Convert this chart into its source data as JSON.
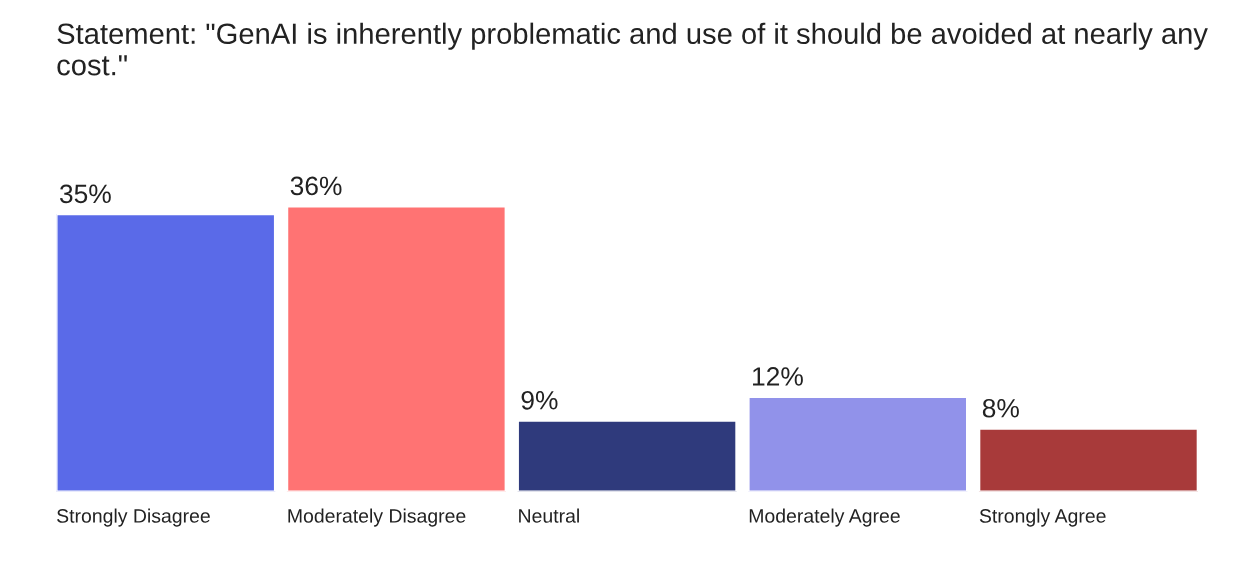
{
  "chart_data": {
    "type": "bar",
    "title": "Statement: \"GenAI is inherently problematic and use of it should be avoided at nearly any cost.\"",
    "categories": [
      "Strongly Disagree",
      "Moderately Disagree",
      "Neutral",
      "Moderately Agree",
      "Strongly Agree"
    ],
    "values": [
      35,
      36,
      9,
      12,
      8
    ],
    "colors": [
      "#5a6ae8",
      "#ff7373",
      "#2f3a7c",
      "#9192ea",
      "#a83a3a"
    ],
    "value_labels": [
      "35%",
      "36%",
      "9%",
      "12%",
      "8%"
    ]
  }
}
